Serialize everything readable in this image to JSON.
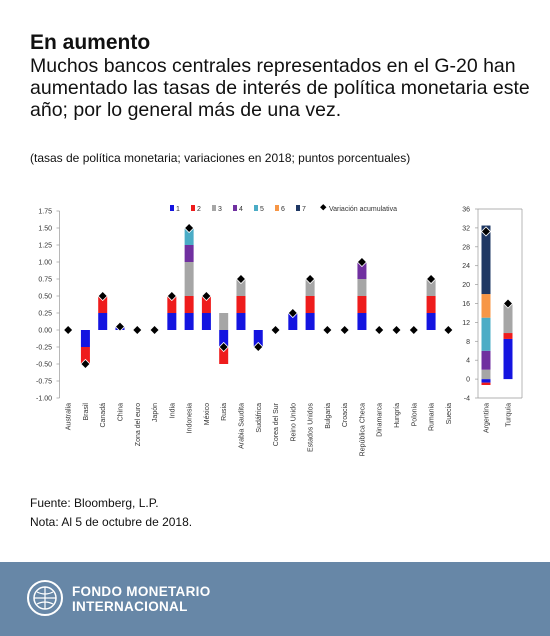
{
  "header": {
    "title": "En aumento",
    "subtitle": "Muchos bancos centrales representados en el G-20 han aumentado las tasas de interés de política monetaria este año; por lo general más de una vez.",
    "note": "(tasas de política monetaria; variaciones en 2018; puntos porcentuales)"
  },
  "chart_data": [
    {
      "type": "bar",
      "stacked": true,
      "categories": [
        "Australia",
        "Brasil",
        "Canadá",
        "China",
        "Zona del euro",
        "Japón",
        "India",
        "Indonesia",
        "México",
        "Rusia",
        "Arabia Saudita",
        "Sudáfrica",
        "Corea del Sur",
        "Reino Unido",
        "Estados Unidos",
        "Bulgaria",
        "Croacia",
        "República Checa",
        "Dinamarca",
        "Hungría",
        "Polonia",
        "Rumania",
        "Suecia"
      ],
      "series": [
        {
          "name": "1",
          "color": "#1414e0",
          "values": [
            0,
            -0.25,
            0.25,
            0.05,
            0,
            0,
            0.25,
            0.25,
            0.25,
            -0.25,
            0.25,
            -0.25,
            0,
            0.25,
            0.25,
            0,
            0,
            0.25,
            0,
            0,
            0,
            0.25,
            0
          ]
        },
        {
          "name": "2",
          "color": "#ee1c1c",
          "values": [
            0,
            -0.25,
            0.25,
            0,
            0,
            0,
            0.25,
            0.25,
            0.25,
            -0.25,
            0.25,
            0,
            0,
            0,
            0.25,
            0,
            0,
            0.25,
            0,
            0,
            0,
            0.25,
            0
          ]
        },
        {
          "name": "3",
          "color": "#a6a6a6",
          "values": [
            0,
            0,
            0,
            0,
            0,
            0,
            0,
            0.5,
            0,
            0.25,
            0.25,
            0,
            0,
            0,
            0.25,
            0,
            0,
            0.25,
            0,
            0,
            0,
            0.25,
            0
          ]
        },
        {
          "name": "4",
          "color": "#7030a0",
          "values": [
            0,
            0,
            0,
            0,
            0,
            0,
            0,
            0.25,
            0,
            0,
            0,
            0,
            0,
            0,
            0,
            0,
            0,
            0.25,
            0,
            0,
            0,
            0,
            0
          ]
        },
        {
          "name": "5",
          "color": "#4bacc6",
          "values": [
            0,
            0,
            0,
            0,
            0,
            0,
            0,
            0.25,
            0,
            0,
            0,
            0,
            0,
            0,
            0,
            0,
            0,
            0,
            0,
            0,
            0,
            0,
            0
          ]
        },
        {
          "name": "6",
          "color": "#f79646",
          "values": [
            0,
            0,
            0,
            0,
            0,
            0,
            0,
            0,
            0,
            0,
            0,
            0,
            0,
            0,
            0,
            0,
            0,
            0,
            0,
            0,
            0,
            0,
            0
          ]
        },
        {
          "name": "7",
          "color": "#1f3864",
          "values": [
            0,
            0,
            0,
            0,
            0,
            0,
            0,
            0,
            0,
            0,
            0,
            0,
            0,
            0,
            0,
            0,
            0,
            0,
            0,
            0,
            0,
            0,
            0
          ]
        }
      ],
      "cumulative": {
        "name": "Variación acumulativa",
        "values": [
          0,
          -0.5,
          0.5,
          0.05,
          0,
          0,
          0.5,
          1.5,
          0.5,
          -0.25,
          0.75,
          -0.25,
          0,
          0.25,
          0.75,
          0,
          0,
          1,
          0,
          0,
          0,
          0.75,
          0
        ]
      },
      "ylim": [
        -1,
        1.75
      ],
      "yticks": [
        {
          "value": -1,
          "label": "-1.00"
        },
        {
          "value": -0.75,
          "label": "-0.75"
        },
        {
          "value": -0.5,
          "label": "-0.50"
        },
        {
          "value": -0.25,
          "label": "-0.25"
        },
        {
          "value": 0,
          "label": "0.00"
        },
        {
          "value": 0.25,
          "label": "0.25"
        },
        {
          "value": 0.5,
          "label": "0.50"
        },
        {
          "value": 0.75,
          "label": "0.75"
        },
        {
          "value": 1,
          "label": "1.00"
        },
        {
          "value": 1.25,
          "label": "1.25"
        },
        {
          "value": 1.5,
          "label": "1.50"
        },
        {
          "value": 1.75,
          "label": "1.75"
        }
      ]
    },
    {
      "type": "bar",
      "stacked": true,
      "categories": [
        "Argentina",
        "Turquía"
      ],
      "series": [
        {
          "color": "#1414e0",
          "values": [
            -0.75,
            8.5
          ]
        },
        {
          "color": "#ee1c1c",
          "values": [
            -0.5,
            1.25
          ]
        },
        {
          "color": "#a6a6a6",
          "values": [
            2,
            6.25
          ]
        },
        {
          "color": "#7030a0",
          "values": [
            4,
            0
          ]
        },
        {
          "color": "#4bacc6",
          "values": [
            7,
            0
          ]
        },
        {
          "color": "#f79646",
          "values": [
            5,
            0
          ]
        },
        {
          "color": "#1f3864",
          "values": [
            14.5,
            0
          ]
        }
      ],
      "cumulative": {
        "values": [
          31.25,
          16
        ]
      },
      "ylim": [
        -4,
        36
      ],
      "yticks": [
        -4,
        0,
        4,
        8,
        12,
        16,
        20,
        24,
        28,
        32,
        36
      ]
    }
  ],
  "footer": {
    "source": "Fuente: Bloomberg, L.P.",
    "note": "Nota: Al 5 de octubre de 2018."
  },
  "brand": [
    "FONDO MONETARIO",
    "INTERNACIONAL"
  ]
}
